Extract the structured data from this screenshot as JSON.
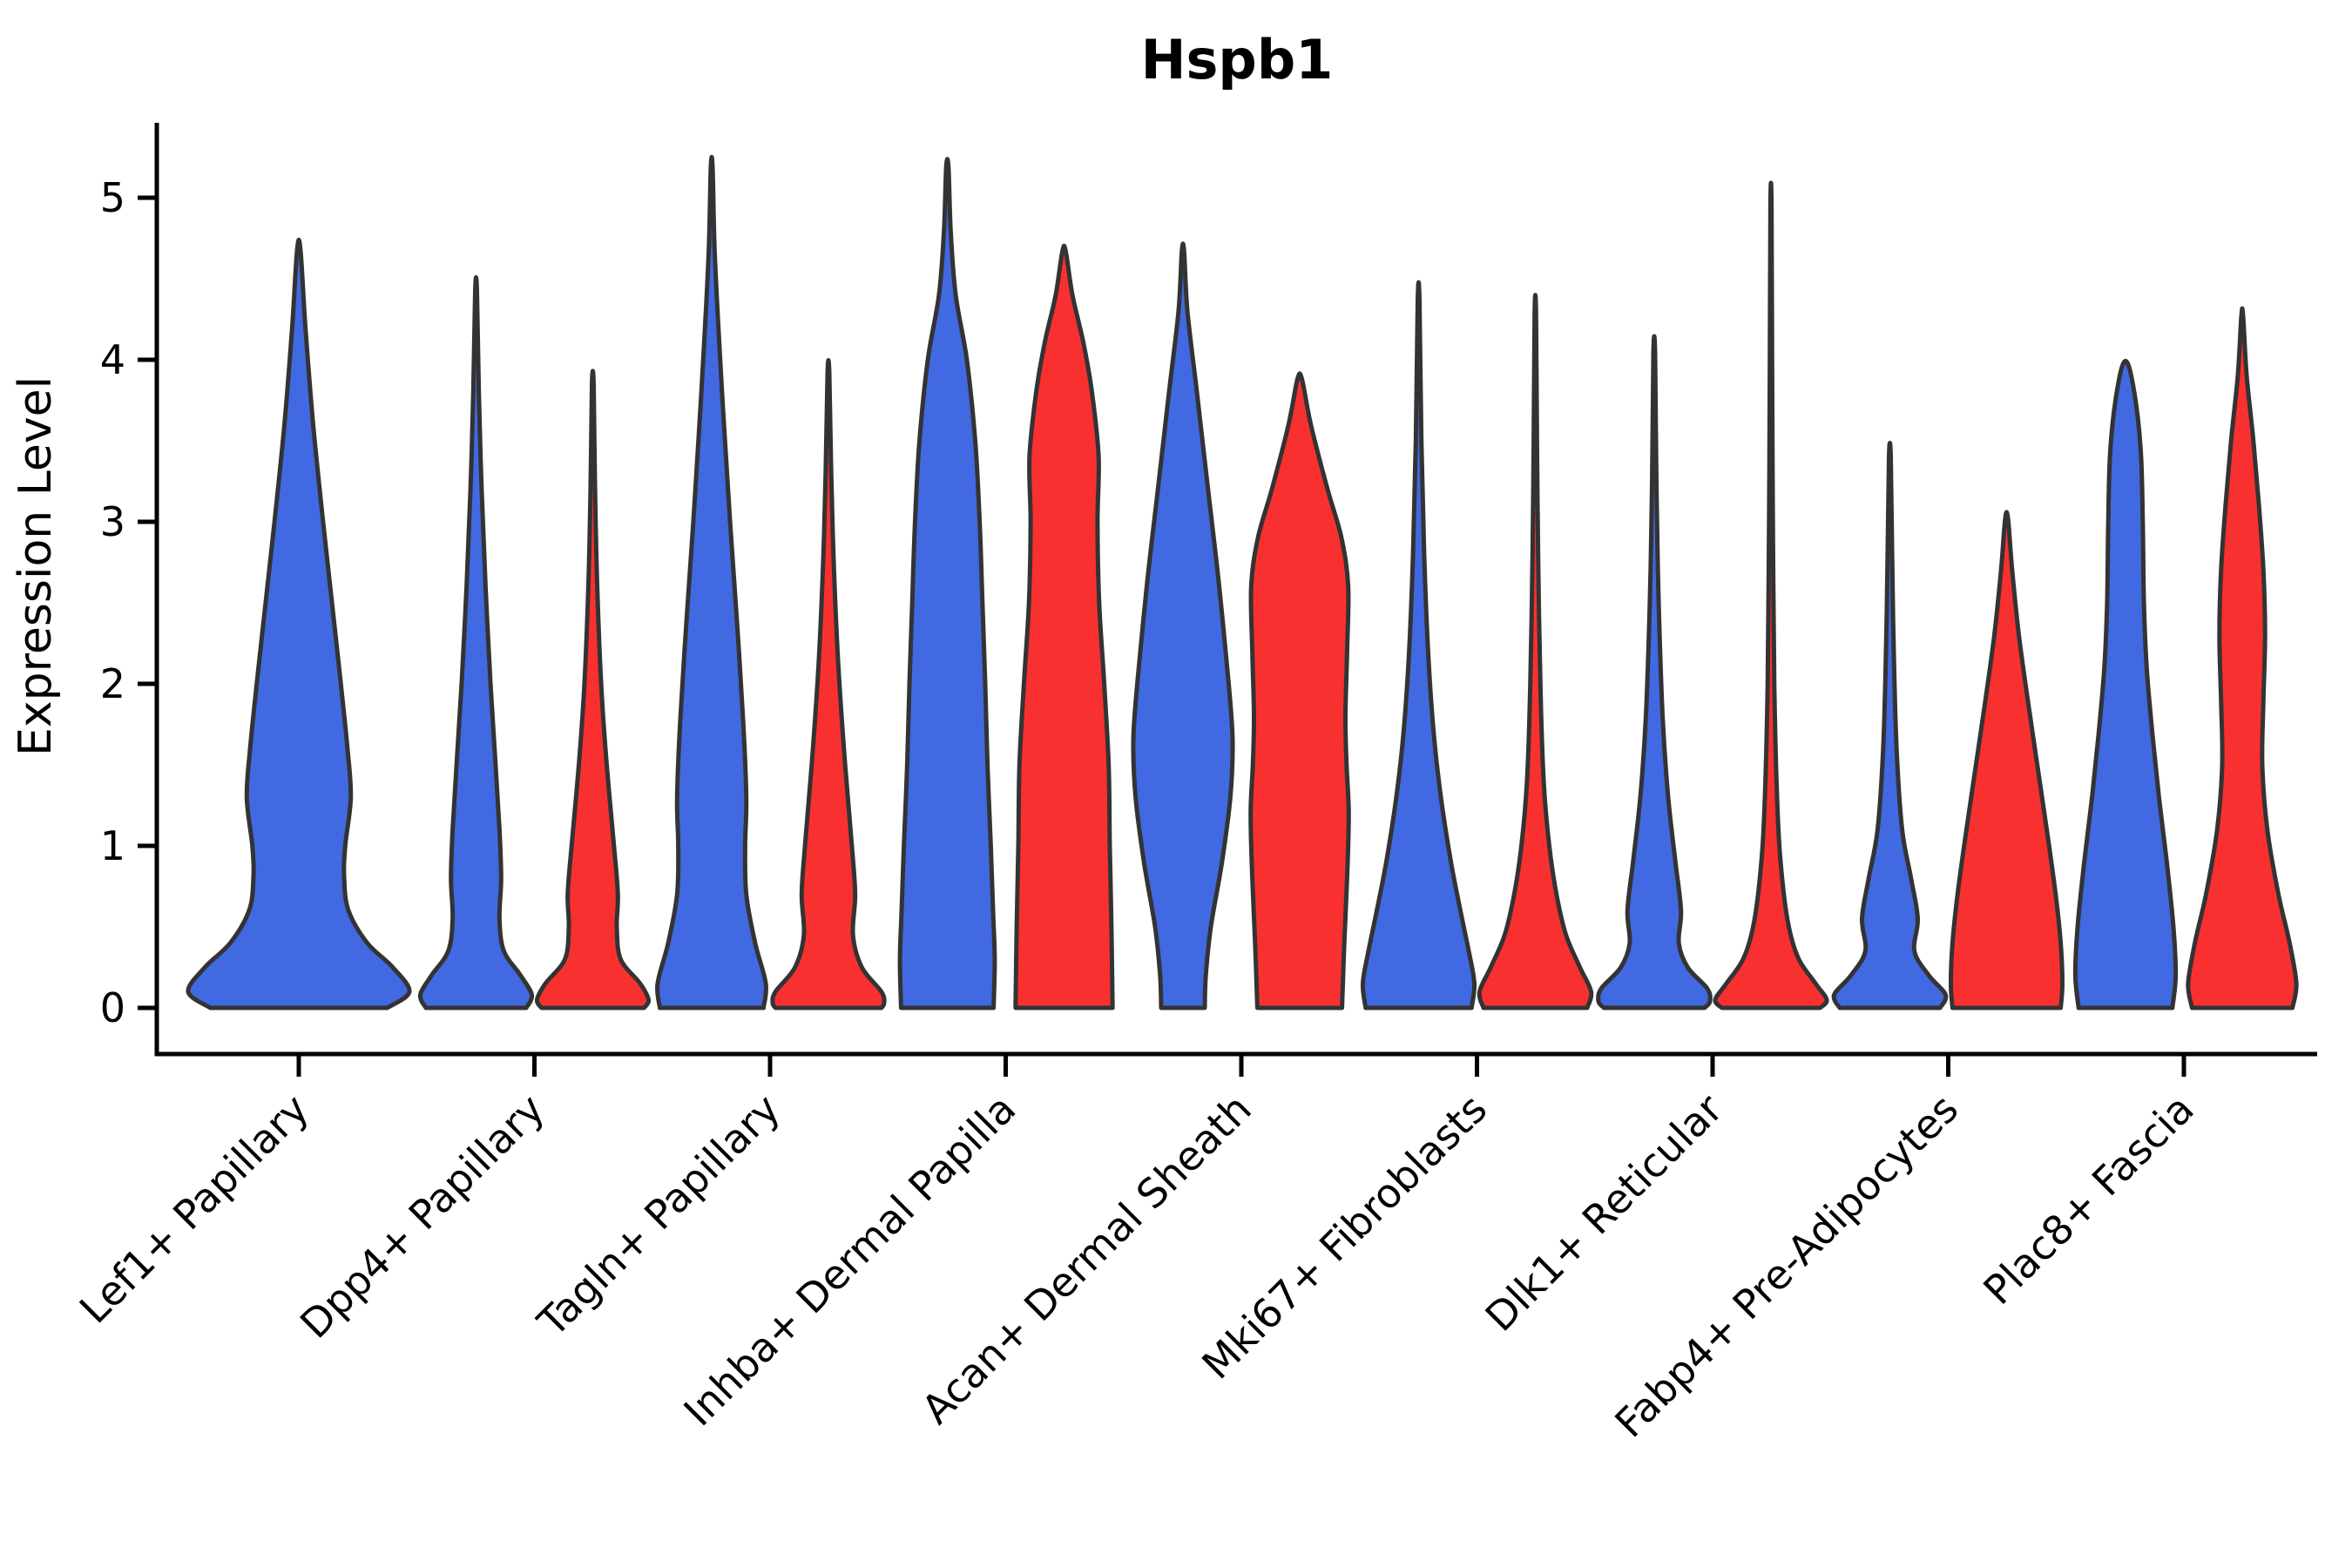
{
  "chart_data": {
    "type": "violin",
    "title": "Hspb1",
    "xlabel": "",
    "ylabel": "Expression Level",
    "ylim": [
      0,
      5
    ],
    "yticks": [
      "0",
      "1",
      "2",
      "3",
      "4",
      "5"
    ],
    "grid": false,
    "legend_position": "none",
    "colors": {
      "group_blue": "#4169E1",
      "group_red": "#F93030",
      "outline": "#333333",
      "axis": "#000000",
      "background": "#FFFFFF"
    },
    "categories": [
      "Lef1+ Papillary",
      "Dpp4+ Papillary",
      "Tagln+ Papillary",
      "Inhba+ Dermal Papilla",
      "Acan+ Dermal Sheath",
      "Mki67+ Fibroblasts",
      "Dlk1+ Reticular",
      "Fabp4+ Pre-Adipocytes",
      "Plac8+ Fascia"
    ],
    "violins": [
      {
        "category": "Lef1+ Papillary",
        "group": "blue",
        "max": 4.68,
        "profile": [
          [
            4.68,
            0.015
          ],
          [
            4.2,
            0.06
          ],
          [
            3.6,
            0.13
          ],
          [
            3.0,
            0.22
          ],
          [
            2.5,
            0.3
          ],
          [
            2.0,
            0.38
          ],
          [
            1.6,
            0.44
          ],
          [
            1.3,
            0.47
          ],
          [
            1.0,
            0.42
          ],
          [
            0.8,
            0.41
          ],
          [
            0.6,
            0.45
          ],
          [
            0.4,
            0.62
          ],
          [
            0.25,
            0.85
          ],
          [
            0.1,
            1.0
          ],
          [
            0,
            0.8
          ]
        ]
      },
      {
        "category": "Dpp4+ Papillary",
        "group": "blue",
        "max": 4.43,
        "profile": [
          [
            4.43,
            0.015
          ],
          [
            3.8,
            0.05
          ],
          [
            3.2,
            0.1
          ],
          [
            2.6,
            0.17
          ],
          [
            2.0,
            0.26
          ],
          [
            1.5,
            0.35
          ],
          [
            1.1,
            0.42
          ],
          [
            0.8,
            0.45
          ],
          [
            0.55,
            0.42
          ],
          [
            0.35,
            0.5
          ],
          [
            0.2,
            0.8
          ],
          [
            0.08,
            1.0
          ],
          [
            0,
            0.9
          ]
        ]
      },
      {
        "category": "Dpp4+ Papillary",
        "group": "red",
        "max": 3.85,
        "profile": [
          [
            3.85,
            0.015
          ],
          [
            3.2,
            0.04
          ],
          [
            2.6,
            0.08
          ],
          [
            2.0,
            0.15
          ],
          [
            1.5,
            0.25
          ],
          [
            1.0,
            0.38
          ],
          [
            0.7,
            0.45
          ],
          [
            0.5,
            0.43
          ],
          [
            0.3,
            0.5
          ],
          [
            0.15,
            0.85
          ],
          [
            0.05,
            1.0
          ],
          [
            0,
            0.92
          ]
        ]
      },
      {
        "category": "Tagln+ Papillary",
        "group": "blue",
        "max": 5.19,
        "profile": [
          [
            5.19,
            0.015
          ],
          [
            4.7,
            0.05
          ],
          [
            4.2,
            0.12
          ],
          [
            3.6,
            0.22
          ],
          [
            3.0,
            0.33
          ],
          [
            2.4,
            0.45
          ],
          [
            1.8,
            0.56
          ],
          [
            1.3,
            0.62
          ],
          [
            1.0,
            0.6
          ],
          [
            0.7,
            0.62
          ],
          [
            0.4,
            0.78
          ],
          [
            0.15,
            0.97
          ],
          [
            0,
            0.93
          ]
        ]
      },
      {
        "category": "Tagln+ Papillary",
        "group": "red",
        "max": 3.92,
        "profile": [
          [
            3.92,
            0.015
          ],
          [
            3.3,
            0.05
          ],
          [
            2.7,
            0.1
          ],
          [
            2.1,
            0.18
          ],
          [
            1.5,
            0.3
          ],
          [
            1.0,
            0.42
          ],
          [
            0.7,
            0.48
          ],
          [
            0.45,
            0.44
          ],
          [
            0.25,
            0.6
          ],
          [
            0.1,
            0.95
          ],
          [
            0.03,
            1.0
          ],
          [
            0,
            0.95
          ]
        ]
      },
      {
        "category": "Inhba+ Dermal Papilla",
        "group": "blue",
        "max": 5.19,
        "profile": [
          [
            5.19,
            0.02
          ],
          [
            4.8,
            0.06
          ],
          [
            4.4,
            0.15
          ],
          [
            4.0,
            0.35
          ],
          [
            3.5,
            0.5
          ],
          [
            3.0,
            0.58
          ],
          [
            2.5,
            0.63
          ],
          [
            2.0,
            0.68
          ],
          [
            1.5,
            0.72
          ],
          [
            1.0,
            0.78
          ],
          [
            0.6,
            0.82
          ],
          [
            0.3,
            0.85
          ],
          [
            0,
            0.83
          ]
        ]
      },
      {
        "category": "Inhba+ Dermal Papilla",
        "group": "red",
        "max": 4.67,
        "profile": [
          [
            4.67,
            0.03
          ],
          [
            4.4,
            0.15
          ],
          [
            4.1,
            0.35
          ],
          [
            3.8,
            0.5
          ],
          [
            3.4,
            0.62
          ],
          [
            3.0,
            0.6
          ],
          [
            2.5,
            0.63
          ],
          [
            2.0,
            0.72
          ],
          [
            1.5,
            0.8
          ],
          [
            1.0,
            0.82
          ],
          [
            0.5,
            0.85
          ],
          [
            0,
            0.87
          ]
        ]
      },
      {
        "category": "Acan+ Dermal Sheath",
        "group": "blue",
        "max": 4.67,
        "profile": [
          [
            4.67,
            0.02
          ],
          [
            4.3,
            0.08
          ],
          [
            3.8,
            0.25
          ],
          [
            3.2,
            0.45
          ],
          [
            2.6,
            0.65
          ],
          [
            2.0,
            0.82
          ],
          [
            1.65,
            0.89
          ],
          [
            1.3,
            0.85
          ],
          [
            0.9,
            0.7
          ],
          [
            0.5,
            0.5
          ],
          [
            0.2,
            0.41
          ],
          [
            0,
            0.39
          ]
        ]
      },
      {
        "category": "Acan+ Dermal Sheath",
        "group": "red",
        "max": 3.88,
        "profile": [
          [
            3.88,
            0.04
          ],
          [
            3.6,
            0.2
          ],
          [
            3.2,
            0.5
          ],
          [
            2.9,
            0.75
          ],
          [
            2.6,
            0.87
          ],
          [
            2.2,
            0.85
          ],
          [
            1.8,
            0.82
          ],
          [
            1.5,
            0.84
          ],
          [
            1.2,
            0.88
          ],
          [
            0.8,
            0.85
          ],
          [
            0.4,
            0.8
          ],
          [
            0,
            0.76
          ]
        ]
      },
      {
        "category": "Mki67+ Fibroblasts",
        "group": "blue",
        "max": 4.37,
        "profile": [
          [
            4.37,
            0.015
          ],
          [
            3.5,
            0.05
          ],
          [
            2.8,
            0.1
          ],
          [
            2.2,
            0.17
          ],
          [
            1.7,
            0.27
          ],
          [
            1.3,
            0.4
          ],
          [
            0.9,
            0.58
          ],
          [
            0.6,
            0.75
          ],
          [
            0.35,
            0.9
          ],
          [
            0.15,
            1.0
          ],
          [
            0,
            0.95
          ]
        ]
      },
      {
        "category": "Mki67+ Fibroblasts",
        "group": "red",
        "max": 4.3,
        "profile": [
          [
            4.3,
            0.012
          ],
          [
            3.5,
            0.03
          ],
          [
            2.8,
            0.05
          ],
          [
            2.0,
            0.09
          ],
          [
            1.4,
            0.15
          ],
          [
            1.0,
            0.25
          ],
          [
            0.7,
            0.38
          ],
          [
            0.45,
            0.55
          ],
          [
            0.25,
            0.8
          ],
          [
            0.1,
            1.0
          ],
          [
            0,
            0.93
          ]
        ]
      },
      {
        "category": "Dlk1+ Reticular",
        "group": "blue",
        "max": 4.04,
        "profile": [
          [
            4.04,
            0.015
          ],
          [
            3.2,
            0.04
          ],
          [
            2.5,
            0.08
          ],
          [
            1.8,
            0.15
          ],
          [
            1.3,
            0.25
          ],
          [
            0.9,
            0.38
          ],
          [
            0.6,
            0.48
          ],
          [
            0.4,
            0.44
          ],
          [
            0.25,
            0.6
          ],
          [
            0.12,
            0.95
          ],
          [
            0.04,
            1.0
          ],
          [
            0,
            0.9
          ]
        ]
      },
      {
        "category": "Dlk1+ Reticular",
        "group": "red",
        "max": 4.97,
        "profile": [
          [
            4.97,
            0.01
          ],
          [
            4.0,
            0.02
          ],
          [
            3.0,
            0.035
          ],
          [
            2.0,
            0.06
          ],
          [
            1.2,
            0.12
          ],
          [
            0.8,
            0.2
          ],
          [
            0.5,
            0.32
          ],
          [
            0.3,
            0.5
          ],
          [
            0.15,
            0.8
          ],
          [
            0.05,
            1.0
          ],
          [
            0,
            0.88
          ]
        ]
      },
      {
        "category": "Fabp4+ Pre-Adipocytes",
        "group": "blue",
        "max": 3.41,
        "profile": [
          [
            3.41,
            0.015
          ],
          [
            2.8,
            0.04
          ],
          [
            2.2,
            0.07
          ],
          [
            1.6,
            0.12
          ],
          [
            1.1,
            0.22
          ],
          [
            0.8,
            0.38
          ],
          [
            0.55,
            0.5
          ],
          [
            0.35,
            0.44
          ],
          [
            0.2,
            0.7
          ],
          [
            0.08,
            1.0
          ],
          [
            0,
            0.9
          ]
        ]
      },
      {
        "category": "Fabp4+ Pre-Adipocytes",
        "group": "red",
        "max": 3.02,
        "profile": [
          [
            3.02,
            0.025
          ],
          [
            2.7,
            0.1
          ],
          [
            2.3,
            0.22
          ],
          [
            1.9,
            0.38
          ],
          [
            1.5,
            0.55
          ],
          [
            1.1,
            0.72
          ],
          [
            0.7,
            0.88
          ],
          [
            0.4,
            0.97
          ],
          [
            0.15,
            1.0
          ],
          [
            0,
            0.97
          ]
        ]
      },
      {
        "category": "Plac8+ Fascia",
        "group": "blue",
        "max": 3.96,
        "profile": [
          [
            3.96,
            0.06
          ],
          [
            3.7,
            0.2
          ],
          [
            3.4,
            0.28
          ],
          [
            3.0,
            0.31
          ],
          [
            2.5,
            0.33
          ],
          [
            2.1,
            0.38
          ],
          [
            1.7,
            0.48
          ],
          [
            1.3,
            0.6
          ],
          [
            0.9,
            0.74
          ],
          [
            0.5,
            0.86
          ],
          [
            0.2,
            0.9
          ],
          [
            0,
            0.84
          ]
        ]
      },
      {
        "category": "Plac8+ Fascia",
        "group": "red",
        "max": 4.27,
        "profile": [
          [
            4.27,
            0.015
          ],
          [
            3.9,
            0.08
          ],
          [
            3.5,
            0.2
          ],
          [
            3.1,
            0.3
          ],
          [
            2.7,
            0.38
          ],
          [
            2.3,
            0.41
          ],
          [
            1.9,
            0.38
          ],
          [
            1.5,
            0.36
          ],
          [
            1.1,
            0.45
          ],
          [
            0.7,
            0.65
          ],
          [
            0.4,
            0.85
          ],
          [
            0.15,
            0.97
          ],
          [
            0,
            0.9
          ]
        ]
      }
    ]
  }
}
